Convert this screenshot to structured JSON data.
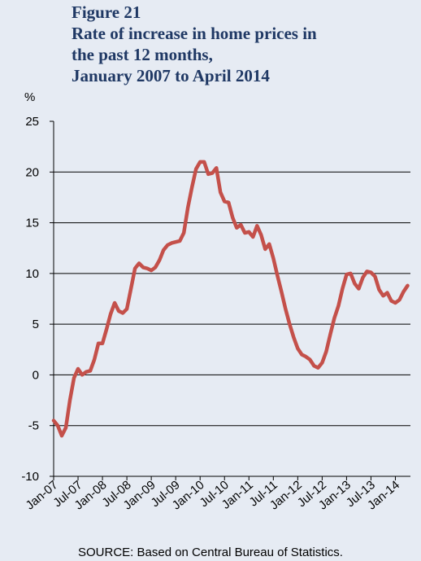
{
  "chart_data": {
    "type": "line",
    "title_lines": [
      "Figure 21",
      "Rate of increase in home prices in",
      "the past 12 months,",
      "January 2007 to April 2014"
    ],
    "y_label": "%",
    "source": "SOURCE: Based on Central Bureau of Statistics.",
    "categories": [
      "Jan-07",
      null,
      null,
      null,
      null,
      null,
      "Jul-07",
      null,
      null,
      null,
      null,
      null,
      "Jan-08",
      null,
      null,
      null,
      null,
      null,
      "Jul-08",
      null,
      null,
      null,
      null,
      null,
      "Jan-09",
      null,
      null,
      null,
      null,
      null,
      "Jul-09",
      null,
      null,
      null,
      null,
      null,
      "Jan-10",
      null,
      null,
      null,
      null,
      null,
      "Jul-10",
      null,
      null,
      null,
      null,
      null,
      "Jan-11",
      null,
      null,
      null,
      null,
      null,
      "Jul-11",
      null,
      null,
      null,
      null,
      null,
      "Jan-12",
      null,
      null,
      null,
      null,
      null,
      "Jul-12",
      null,
      null,
      null,
      null,
      null,
      "Jan-13",
      null,
      null,
      null,
      null,
      null,
      "Jul-13",
      null,
      null,
      null,
      null,
      null,
      "Jan-14",
      null,
      null,
      null
    ],
    "series": [
      {
        "color": "#c4504a",
        "values": [
          -4.5,
          -5,
          -6,
          -5.2,
          -2.5,
          -0.3,
          0.6,
          0,
          0.3,
          0.4,
          1.5,
          3.1,
          3.1,
          4.5,
          6,
          7.1,
          6.3,
          6.1,
          6.5,
          8.5,
          10.5,
          11,
          10.6,
          10.5,
          10.3,
          10.6,
          11.3,
          12.3,
          12.8,
          13,
          13.1,
          13.2,
          14,
          16.5,
          18.5,
          20.3,
          21,
          21,
          19.8,
          19.9,
          20.4,
          18,
          17.1,
          17,
          15.5,
          14.5,
          14.8,
          14,
          14.1,
          13.6,
          14.7,
          13.8,
          12.4,
          12.9,
          11.5,
          9.8,
          8.2,
          6.5,
          5,
          3.7,
          2.6,
          2,
          1.8,
          1.5,
          0.9,
          0.7,
          1.2,
          2.3,
          4,
          5.6,
          6.8,
          8.5,
          9.9,
          10,
          9,
          8.5,
          9.6,
          10.2,
          10.1,
          9.7,
          8.4,
          7.8,
          8.1,
          7.3,
          7.1,
          7.4,
          8.2,
          8.8
        ]
      }
    ],
    "ylim": [
      -10,
      25
    ],
    "yticks": [
      -10,
      -5,
      0,
      5,
      10,
      15,
      20,
      25
    ],
    "grid": true
  }
}
